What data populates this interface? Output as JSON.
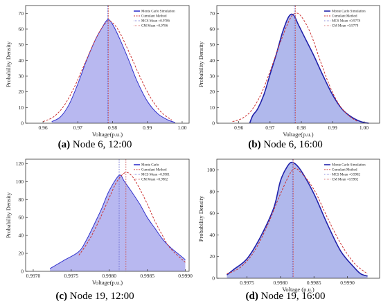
{
  "chart_data": [
    {
      "type": "area",
      "caption_letter": "(a)",
      "caption_text": " Node 6, 12:00",
      "xlabel": "Voltage(p.u.)",
      "ylabel": "Probability Density",
      "xlim": [
        0.955,
        1.002
      ],
      "ylim": [
        0,
        75
      ],
      "xticks": [
        0.96,
        0.97,
        0.98,
        0.99,
        1.0
      ],
      "xtick_labels": [
        "0.96",
        "0.97",
        "0.98",
        "0.99",
        "1.00"
      ],
      "yticks": [
        0,
        10,
        20,
        30,
        40,
        50,
        60,
        70
      ],
      "ytick_labels": [
        "0",
        "10",
        "20",
        "30",
        "40",
        "50",
        "60",
        "70"
      ],
      "legend_position": "top-right",
      "legend": [
        "Monte Carlo Simulation",
        "Cumulant Method",
        "MCS Mean =0.9786",
        "CM Mean =0.9786"
      ],
      "mcs_mean": 0.9786,
      "cm_mean": 0.9786,
      "colors": {
        "mcs": "#3333cc",
        "fill": "#b8b8f0",
        "cm": "#cc3333"
      },
      "series": [
        {
          "name": "Monte Carlo Simulation",
          "x": [
            0.9625,
            0.965,
            0.9675,
            0.97,
            0.9725,
            0.975,
            0.977,
            0.9786,
            0.98,
            0.982,
            0.9845,
            0.987,
            0.99,
            0.993,
            0.996,
            0.998
          ],
          "values": [
            1,
            4,
            12,
            25,
            40,
            53,
            61,
            66,
            63,
            54,
            41,
            27,
            14,
            6,
            2,
            0.5
          ]
        },
        {
          "name": "Cumulant Method",
          "x": [
            0.96,
            0.963,
            0.966,
            0.969,
            0.972,
            0.975,
            0.977,
            0.9786,
            0.98,
            0.982,
            0.985,
            0.988,
            0.991,
            0.994,
            0.997
          ],
          "values": [
            1,
            4,
            11,
            23,
            38,
            53,
            61,
            65,
            64,
            58,
            44,
            29,
            16,
            7,
            2
          ]
        }
      ]
    },
    {
      "type": "area",
      "caption_letter": "(b)",
      "caption_text": " Node 6, 16:00",
      "xlabel": "Voltage(p.u.)",
      "ylabel": "Probability Density",
      "xlim": [
        0.953,
        1.005
      ],
      "ylim": [
        0,
        75
      ],
      "xticks": [
        0.96,
        0.97,
        0.98,
        0.99,
        1.0
      ],
      "xtick_labels": [
        "0.96",
        "0.97",
        "0.98",
        "0.99",
        "1.00"
      ],
      "yticks": [
        0,
        10,
        20,
        30,
        40,
        50,
        60,
        70
      ],
      "ytick_labels": [
        "0",
        "10",
        "20",
        "30",
        "40",
        "50",
        "60",
        "70"
      ],
      "legend_position": "top-right",
      "legend": [
        "Monte Carlo Simulation",
        "Cumulant Method",
        "MCS Mean =0.9778",
        "CM Mean =0.9779"
      ],
      "mcs_mean": 0.9778,
      "cm_mean": 0.9779,
      "colors": {
        "mcs": "#2222aa",
        "fill": "#b0b8ec",
        "cm": "#cc3333"
      },
      "series": [
        {
          "name": "Monte Carlo Simulation",
          "x": [
            0.9635,
            0.9645,
            0.966,
            0.968,
            0.97,
            0.972,
            0.974,
            0.976,
            0.9775,
            0.979,
            0.981,
            0.984,
            0.987,
            0.99,
            0.993,
            0.996,
            0.999,
            1.0015
          ],
          "values": [
            0,
            5,
            9,
            18,
            31,
            44,
            58,
            68,
            69,
            63,
            55,
            43,
            30,
            18,
            9,
            4,
            1,
            0
          ]
        },
        {
          "name": "Cumulant Method",
          "x": [
            0.958,
            0.961,
            0.964,
            0.967,
            0.97,
            0.973,
            0.976,
            0.9779,
            0.98,
            0.983,
            0.986,
            0.989,
            0.992,
            0.995,
            0.998
          ],
          "values": [
            1,
            3,
            8,
            18,
            33,
            50,
            65,
            70,
            68,
            57,
            40,
            24,
            12,
            5,
            1
          ]
        }
      ]
    },
    {
      "type": "area",
      "caption_letter": "(c)",
      "caption_text": " Node 19, 12:00",
      "xlabel": "Voltage(p.u.)",
      "ylabel": "Probability Density",
      "xlim": [
        0.9969,
        0.99905
      ],
      "ylim": [
        0,
        125
      ],
      "xticks": [
        0.997,
        0.9975,
        0.998,
        0.9985,
        0.999
      ],
      "xtick_labels": [
        "0.9970",
        "0.9975",
        "0.9980",
        "0.9985",
        "0.9990"
      ],
      "yticks": [
        0,
        20,
        40,
        60,
        80,
        100,
        120
      ],
      "ytick_labels": [
        "0",
        "20",
        "40",
        "60",
        "80",
        "100",
        "120"
      ],
      "legend_position": "top-right",
      "legend": [
        "Monte Carlo",
        "Cumulant Method",
        "MCS Mean =0.9981",
        "CM Mean =0.9982"
      ],
      "mcs_mean": 0.99813,
      "cm_mean": 0.99821,
      "colors": {
        "mcs": "#3333cc",
        "fill": "#b8b8f0",
        "cm": "#cc3333"
      },
      "series": [
        {
          "name": "Monte Carlo",
          "x": [
            0.99722,
            0.9974,
            0.9976,
            0.9977,
            0.9978,
            0.9979,
            0.998,
            0.99813,
            0.9982,
            0.9983,
            0.9984,
            0.9985,
            0.9986,
            0.9987,
            0.9988,
            0.9989,
            0.999
          ],
          "values": [
            3,
            12,
            22,
            35,
            52,
            70,
            90,
            107,
            100,
            88,
            75,
            60,
            48,
            36,
            27,
            20,
            13
          ]
        },
        {
          "name": "Cumulant Method",
          "x": [
            0.9976,
            0.9977,
            0.9978,
            0.9979,
            0.998,
            0.9981,
            0.99821,
            0.9983,
            0.9984,
            0.9985,
            0.9986,
            0.9987,
            0.9988,
            0.999
          ],
          "values": [
            18,
            30,
            45,
            63,
            82,
            100,
            110,
            106,
            92,
            75,
            56,
            40,
            26,
            10
          ]
        }
      ]
    },
    {
      "type": "area",
      "caption_letter": "(d)",
      "caption_text": " Node 19, 16:00",
      "xlabel": "Voltage (p.u.)",
      "ylabel": "Probability Density",
      "xlim": [
        0.99705,
        0.99948
      ],
      "ylim": [
        0,
        110
      ],
      "xticks": [
        0.9975,
        0.998,
        0.9985,
        0.999
      ],
      "xtick_labels": [
        "0.9975",
        "0.9980",
        "0.9985",
        "0.9990"
      ],
      "yticks": [
        0,
        20,
        40,
        60,
        80,
        100
      ],
      "ytick_labels": [
        "0",
        "20",
        "40",
        "60",
        "80",
        "100"
      ],
      "legend_position": "top-right",
      "legend": [
        "Monte Carlo Simulation",
        "Cumulant Method",
        "MCS Mean =0.9982",
        "CM Mean =0.9982"
      ],
      "mcs_mean": 0.99818,
      "cm_mean": 0.99818,
      "colors": {
        "mcs": "#2222aa",
        "fill": "#b0b8ec",
        "cm": "#cc3333"
      },
      "series": [
        {
          "name": "Monte Carlo Simulation",
          "x": [
            0.9972,
            0.9973,
            0.9975,
            0.9977,
            0.9979,
            0.998,
            0.9981,
            0.99818,
            0.9983,
            0.9985,
            0.9987,
            0.9989,
            0.9991,
            0.9992,
            0.9993
          ],
          "values": [
            3,
            8,
            18,
            38,
            65,
            90,
            103,
            107,
            100,
            78,
            50,
            25,
            10,
            4,
            2
          ]
        },
        {
          "name": "Cumulant Method",
          "x": [
            0.9972,
            0.9974,
            0.9976,
            0.9978,
            0.998,
            0.99818,
            0.9983,
            0.9985,
            0.9987,
            0.9989,
            0.9991,
            0.9993
          ],
          "values": [
            4,
            10,
            24,
            48,
            78,
            100,
            98,
            82,
            56,
            32,
            14,
            4
          ]
        }
      ]
    }
  ]
}
